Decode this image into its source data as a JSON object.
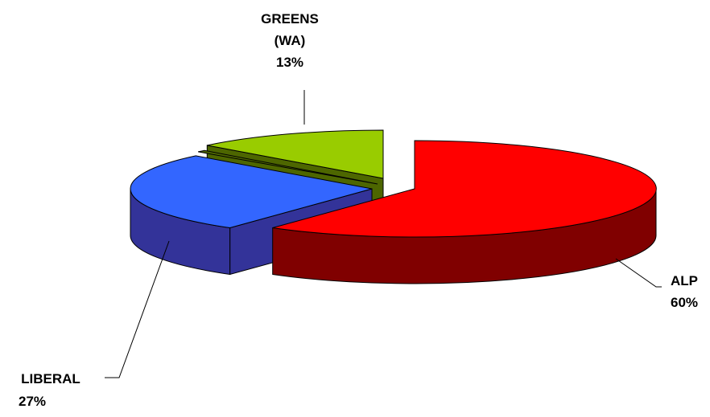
{
  "chart_data": {
    "type": "pie",
    "style": "3d-exploded",
    "slices": [
      {
        "name": "ALP",
        "value": 60,
        "label": "60%",
        "color": "#ff0000",
        "side_color": "#800000"
      },
      {
        "name": "GREENS (WA)",
        "value": 13,
        "label": "13%",
        "color": "#99cc00",
        "side_color": "#4d6600"
      },
      {
        "name": "LIBERAL",
        "value": 27,
        "label": "27%",
        "color": "#3366ff",
        "side_color": "#333399"
      }
    ],
    "legend": "none"
  },
  "labels": {
    "alp_name": "ALP",
    "alp_pct": "60%",
    "greens_name_line1": "GREENS",
    "greens_name_line2": "(WA)",
    "greens_pct": "13%",
    "liberal_name": "LIBERAL",
    "liberal_pct": "27%"
  }
}
